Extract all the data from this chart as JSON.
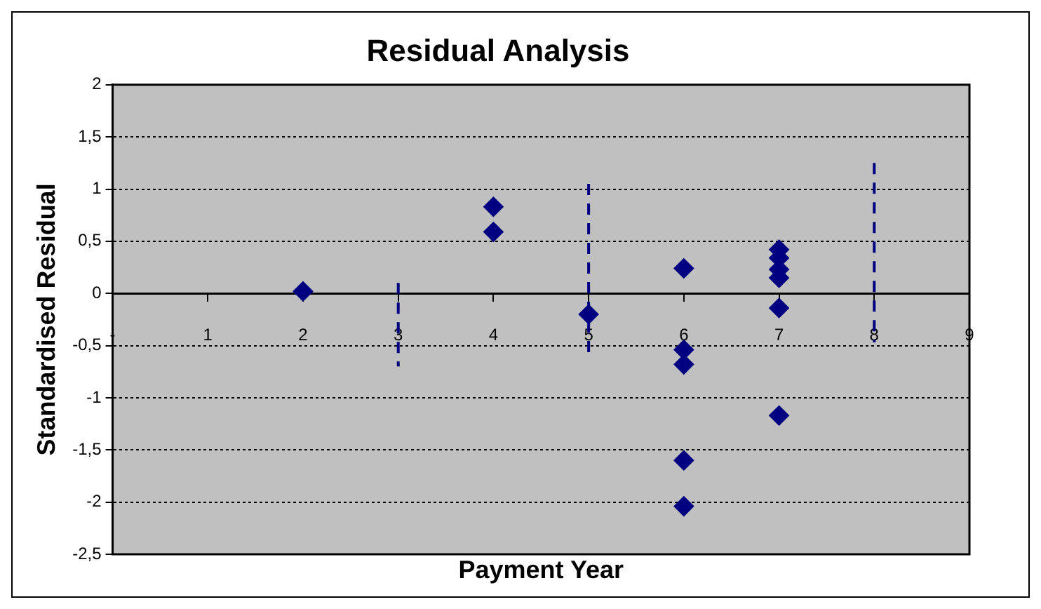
{
  "chart_data": {
    "type": "scatter",
    "title": "Residual Analysis",
    "xlabel": "Payment Year",
    "ylabel": "Standardised Residual",
    "xlim": [
      0,
      9
    ],
    "xticks": [
      {
        "value": 0,
        "label": "-"
      },
      1,
      2,
      3,
      4,
      5,
      6,
      7,
      8,
      9
    ],
    "ylim": [
      -2.5,
      2
    ],
    "yticks": [
      {
        "value": -2.5,
        "label": "-2,5"
      },
      -2,
      {
        "value": -1.5,
        "label": "-1,5"
      },
      -1,
      {
        "value": -0.5,
        "label": "-0,5"
      },
      0,
      {
        "value": 0.5,
        "label": "0,5"
      },
      1,
      {
        "value": 1.5,
        "label": "1,5"
      },
      2
    ],
    "grid": "y",
    "legend": false,
    "marker": "diamond",
    "series": [
      {
        "color": "#000080",
        "x": [
          2,
          4,
          4,
          5,
          6,
          6,
          6,
          6,
          6,
          7,
          7,
          7,
          7,
          7,
          7
        ],
        "values": [
          0.02,
          0.83,
          0.59,
          -0.2,
          0.24,
          -0.54,
          -0.68,
          -1.6,
          -2.04,
          0.42,
          0.34,
          0.23,
          0.15,
          -0.14,
          -1.17
        ]
      },
      {
        "type": "line",
        "color": "#000080",
        "line_style": "dashed",
        "marker": "none",
        "x": [
          3,
          3
        ],
        "values": [
          0.1,
          -0.7
        ]
      },
      {
        "type": "line",
        "color": "#000080",
        "line_style": "dashed",
        "marker": "none",
        "x": [
          5,
          5
        ],
        "values": [
          1.05,
          -0.57
        ]
      },
      {
        "type": "line",
        "color": "#000080",
        "line_style": "dashed",
        "marker": "none",
        "x": [
          8,
          8
        ],
        "values": [
          1.25,
          -0.47
        ]
      }
    ]
  }
}
